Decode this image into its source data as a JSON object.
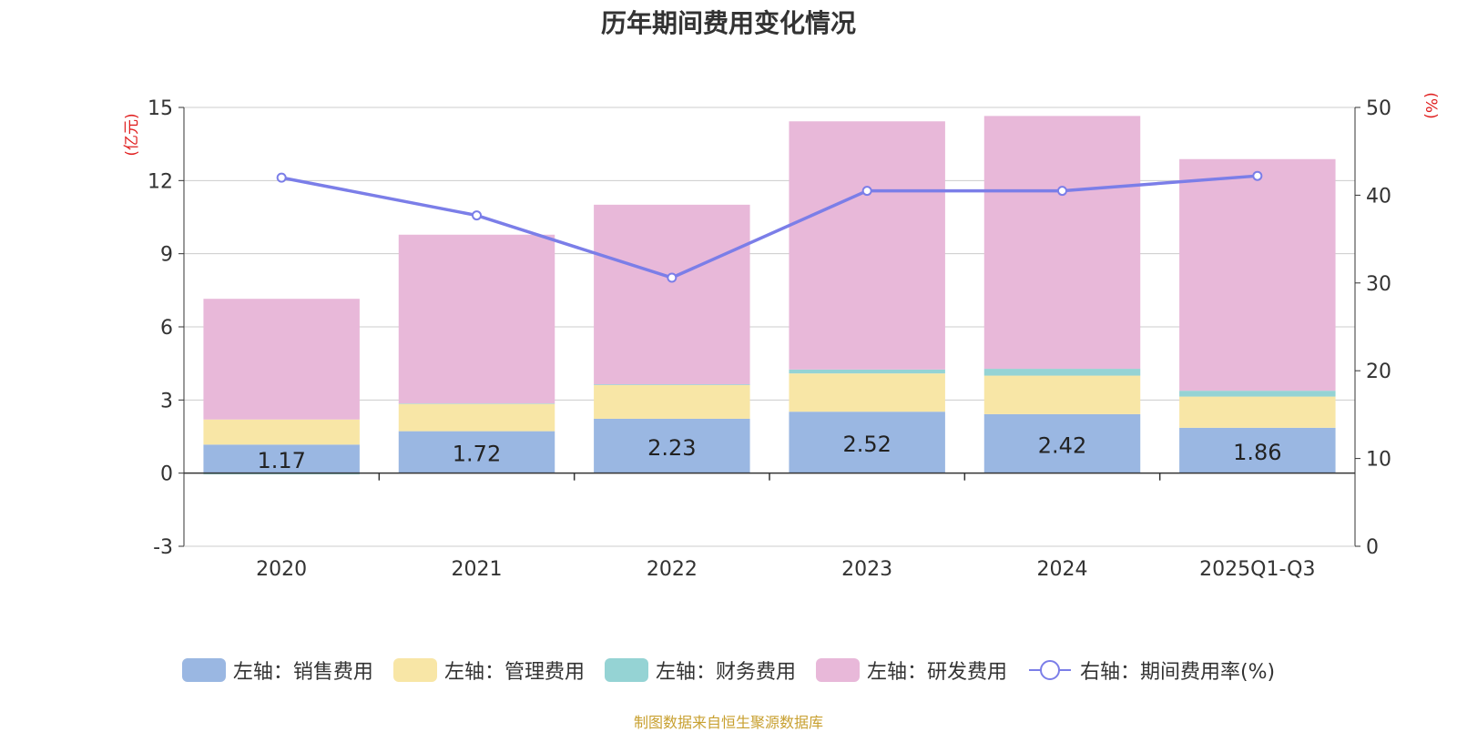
{
  "chart_data": {
    "type": "bar",
    "title": "历年期间费用变化情况",
    "categories": [
      "2020",
      "2021",
      "2022",
      "2023",
      "2024",
      "2025Q1-Q3"
    ],
    "left_axis": {
      "unit": "(亿元)",
      "ylim": [
        -3,
        15
      ],
      "ticks": [
        -3,
        0,
        3,
        6,
        9,
        12,
        15
      ]
    },
    "right_axis": {
      "unit": "(%)",
      "ylim": [
        0,
        50
      ],
      "ticks": [
        0,
        10,
        20,
        30,
        40,
        50
      ]
    },
    "series": [
      {
        "name": "左轴：销售费用",
        "color": "#9ab7e2",
        "values": [
          1.17,
          1.72,
          2.23,
          2.52,
          2.42,
          1.86
        ],
        "labels": [
          "1.17",
          "1.72",
          "2.23",
          "2.52",
          "2.42",
          "1.86"
        ]
      },
      {
        "name": "左轴：管理费用",
        "color": "#f8e6a6",
        "values": [
          1.03,
          1.12,
          1.38,
          1.57,
          1.58,
          1.28
        ]
      },
      {
        "name": "左轴：财务费用",
        "color": "#95d3d4",
        "values": [
          -0.05,
          0.02,
          0.03,
          0.16,
          0.28,
          0.24
        ]
      },
      {
        "name": "左轴：研发费用",
        "color": "#e8b8d9",
        "values": [
          4.95,
          6.92,
          7.37,
          10.18,
          10.37,
          9.5
        ]
      }
    ],
    "line_series": {
      "name": "右轴：期间费用率(%)",
      "color": "#7b7ee8",
      "values": [
        42.0,
        37.7,
        30.6,
        40.5,
        40.5,
        42.2
      ]
    },
    "legend_position": "bottom",
    "grid": true
  },
  "source": "制图数据来自恒生聚源数据库"
}
